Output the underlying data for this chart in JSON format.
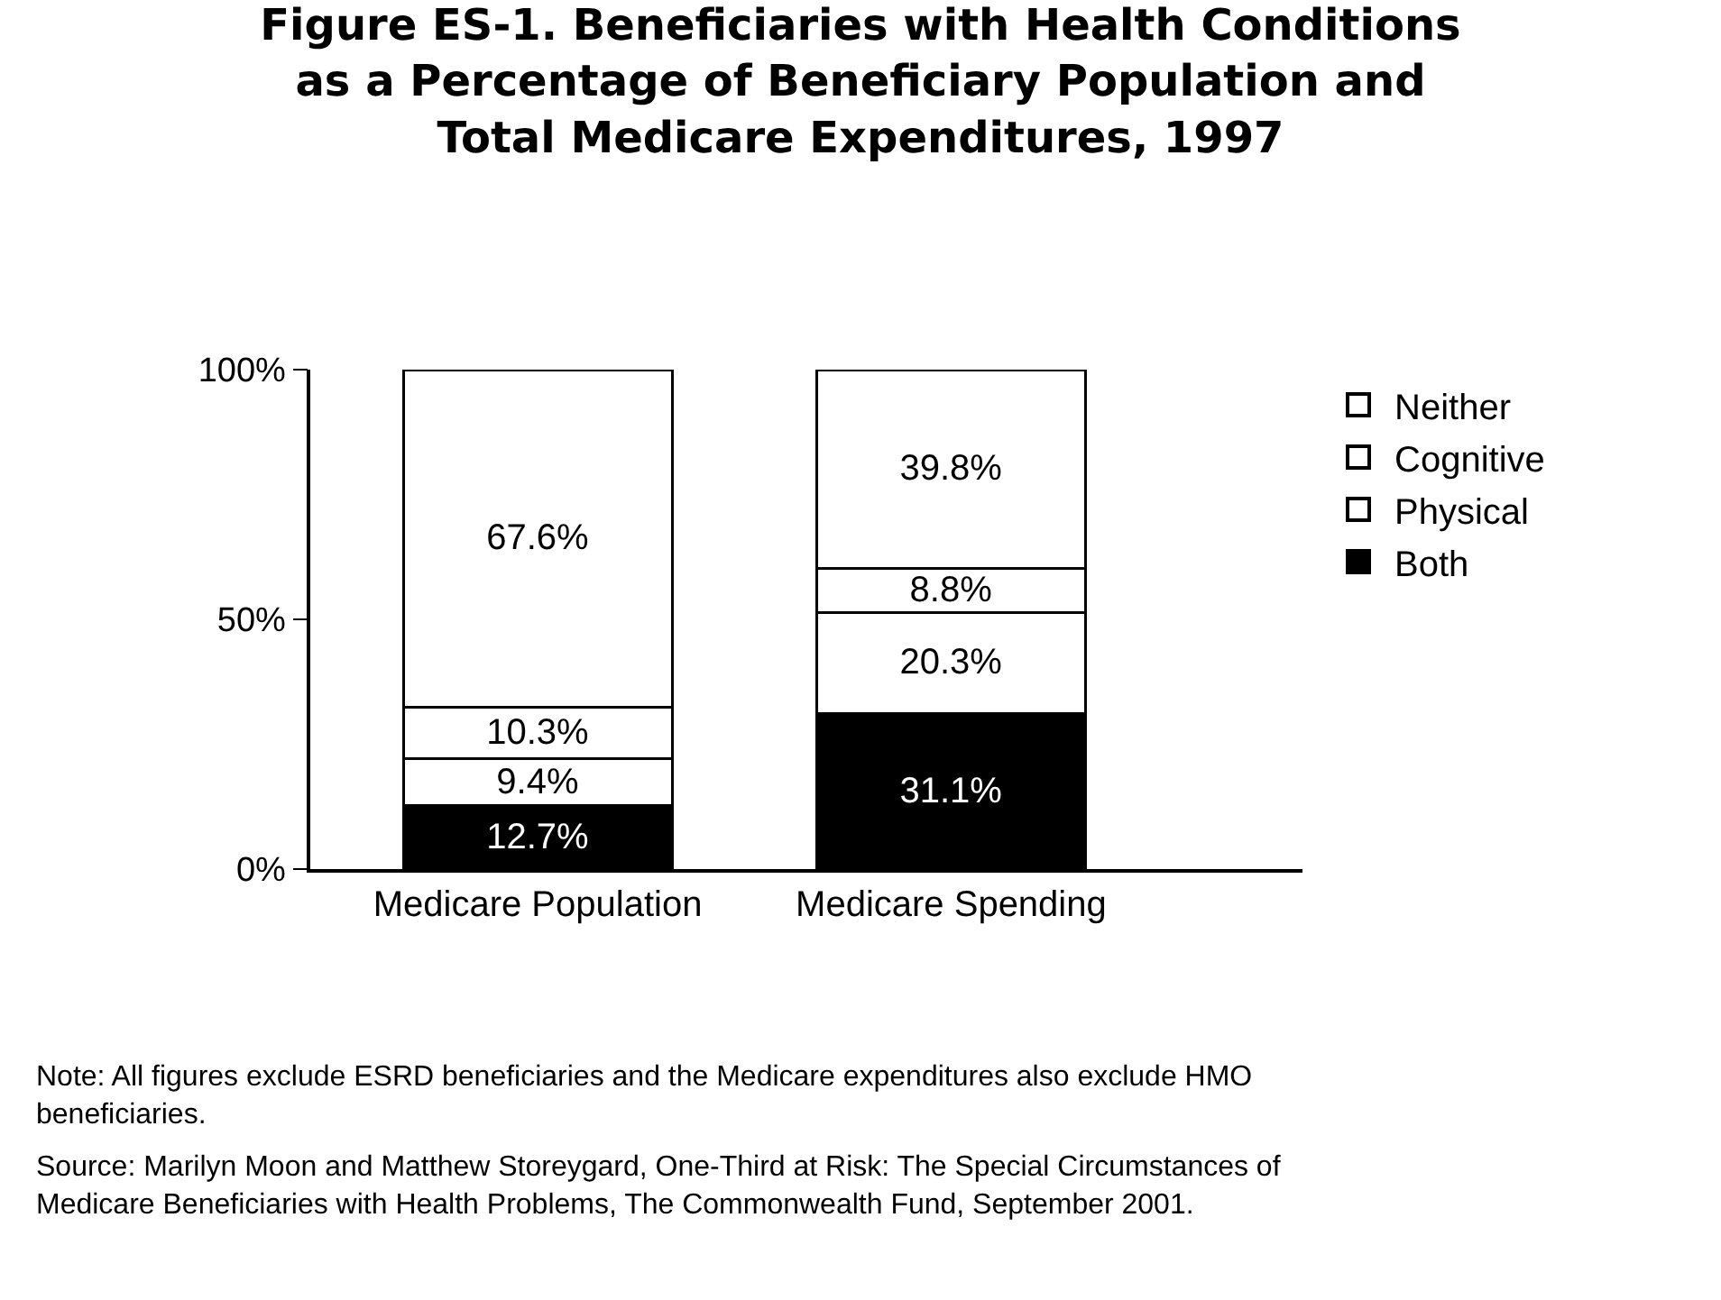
{
  "chart_data": {
    "type": "bar",
    "stacked": true,
    "title": "Figure ES-1. Beneficiaries with Health Conditions as a Percentage of Beneficiary Population and Total Medicare Expenditures, 1997",
    "categories": [
      "Medicare Population",
      "Medicare Spending"
    ],
    "series": [
      {
        "name": "Both",
        "color": "#000000",
        "values": [
          12.7,
          31.1
        ],
        "value_labels": [
          "12.7%",
          "31.1%"
        ]
      },
      {
        "name": "Physical",
        "color": "#ffffff",
        "values": [
          9.4,
          20.3
        ],
        "value_labels": [
          "9.4%",
          "20.3%"
        ]
      },
      {
        "name": "Cognitive",
        "color": "#ffffff",
        "values": [
          10.3,
          8.8
        ],
        "value_labels": [
          "10.3%",
          "8.8%"
        ]
      },
      {
        "name": "Neither",
        "color": "#ffffff",
        "values": [
          67.6,
          39.8
        ],
        "value_labels": [
          "67.6%",
          "39.8%"
        ]
      }
    ],
    "ylim": [
      0,
      100
    ],
    "yticks": [
      {
        "value": 0,
        "label": "0%"
      },
      {
        "value": 50,
        "label": "50%"
      },
      {
        "value": 100,
        "label": "100%"
      }
    ],
    "grid": false,
    "legend": "right",
    "annotations": [
      "Note: All figures exclude ESRD beneficiaries and the Medicare expenditures also exclude HMO beneficiaries.",
      "Source: Marilyn Moon and Matthew Storeygard, One-Third at Risk: The Special Circumstances of Medicare Beneficiaries with Health Problems, The Commonwealth Fund, September 2001."
    ]
  }
}
